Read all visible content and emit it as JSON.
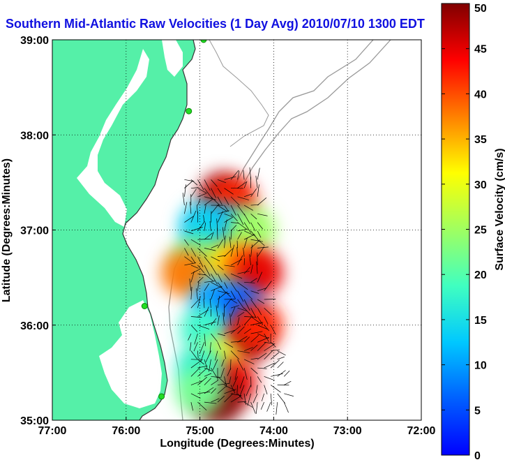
{
  "chart_data": {
    "type": "heatmap",
    "title": "Southern Mid-Atlantic Raw Velocities (1 Day Avg) 2010/07/10 1300 EDT",
    "xlabel": "Longitude (Degrees:Minutes)",
    "ylabel": "Latitude (Degrees:Minutes)",
    "xlim": [
      -77,
      -72
    ],
    "ylim": [
      35,
      39
    ],
    "x_ticks": [
      {
        "value": -77,
        "label": "77:00"
      },
      {
        "value": -76,
        "label": "76:00"
      },
      {
        "value": -75,
        "label": "75:00"
      },
      {
        "value": -74,
        "label": "74:00"
      },
      {
        "value": -73,
        "label": "73:00"
      },
      {
        "value": -72,
        "label": "72:00"
      }
    ],
    "y_ticks": [
      {
        "value": 35,
        "label": "35:00"
      },
      {
        "value": 36,
        "label": "36:00"
      },
      {
        "value": 37,
        "label": "37:00"
      },
      {
        "value": 38,
        "label": "38:00"
      },
      {
        "value": 39,
        "label": "39:00"
      }
    ],
    "grid": true,
    "colorbar": {
      "label": "Surface Velocity (cm/s)",
      "range": [
        0,
        50
      ],
      "ticks": [
        0,
        5,
        10,
        15,
        20,
        25,
        30,
        35,
        40,
        45,
        50
      ],
      "placement": "right",
      "colormap": "jet"
    },
    "colors": {
      "land": "#55f0a8",
      "coast_line": "#333333",
      "bathymetry": "#999999",
      "grid": "#000000",
      "arrows": "#000000",
      "stations": "#22dd22"
    },
    "regions": [
      {
        "lon": -74.7,
        "lat": 37.35,
        "speed": 48
      },
      {
        "lon": -74.55,
        "lat": 37.3,
        "speed": 42
      },
      {
        "lon": -74.6,
        "lat": 37.0,
        "speed": 12
      },
      {
        "lon": -74.85,
        "lat": 36.95,
        "speed": 8
      },
      {
        "lon": -74.95,
        "lat": 37.05,
        "speed": 14
      },
      {
        "lon": -74.3,
        "lat": 37.0,
        "speed": 25
      },
      {
        "lon": -75.05,
        "lat": 36.7,
        "speed": 22
      },
      {
        "lon": -74.6,
        "lat": 36.65,
        "speed": 32
      },
      {
        "lon": -74.4,
        "lat": 36.6,
        "speed": 38
      },
      {
        "lon": -74.2,
        "lat": 36.55,
        "speed": 45
      },
      {
        "lon": -75.2,
        "lat": 36.55,
        "speed": 38
      },
      {
        "lon": -74.8,
        "lat": 36.25,
        "speed": 10
      },
      {
        "lon": -74.45,
        "lat": 36.2,
        "speed": 6
      },
      {
        "lon": -74.95,
        "lat": 35.95,
        "speed": 18
      },
      {
        "lon": -74.35,
        "lat": 35.85,
        "speed": 48
      },
      {
        "lon": -74.2,
        "lat": 36.0,
        "speed": 42
      },
      {
        "lon": -74.75,
        "lat": 35.6,
        "speed": 30
      },
      {
        "lon": -74.55,
        "lat": 35.4,
        "speed": 45
      },
      {
        "lon": -74.75,
        "lat": 35.2,
        "speed": 50
      },
      {
        "lon": -75.0,
        "lat": 35.55,
        "speed": 17
      },
      {
        "lon": -75.0,
        "lat": 35.3,
        "speed": 22
      }
    ],
    "stations": [
      {
        "lon": -74.95,
        "lat": 39.0
      },
      {
        "lon": -75.15,
        "lat": 38.25
      },
      {
        "lon": -75.75,
        "lat": 36.2
      },
      {
        "lon": -75.52,
        "lat": 35.25
      }
    ]
  }
}
